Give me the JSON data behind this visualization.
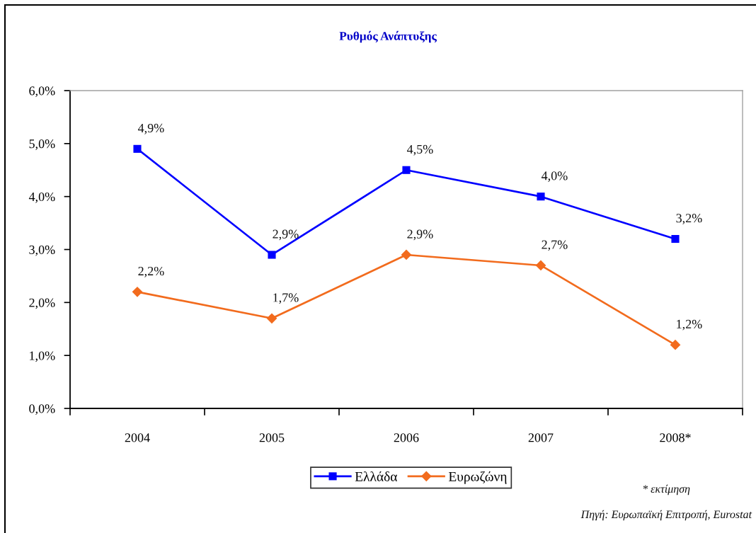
{
  "chart_data": {
    "type": "line",
    "title": "Ρυθμός Ανάπτυξης",
    "categories": [
      "2004",
      "2005",
      "2006",
      "2007",
      "2008*"
    ],
    "series": [
      {
        "name": "Ελλάδα",
        "color": "#0000ff",
        "marker": "square",
        "values": [
          4.9,
          2.9,
          4.5,
          4.0,
          3.2
        ],
        "value_labels": [
          "4,9%",
          "2,9%",
          "4,5%",
          "4,0%",
          "3,2%"
        ]
      },
      {
        "name": "Ευρωζώνη",
        "color": "#f26b1d",
        "marker": "diamond",
        "values": [
          2.2,
          1.7,
          2.9,
          2.7,
          1.2
        ],
        "value_labels": [
          "2,2%",
          "1,7%",
          "2,9%",
          "2,7%",
          "1,2%"
        ]
      }
    ],
    "ylim": [
      0,
      6
    ],
    "yticks": [
      {
        "value": 0,
        "label": "0,0%"
      },
      {
        "value": 1,
        "label": "1,0%"
      },
      {
        "value": 2,
        "label": "2,0%"
      },
      {
        "value": 3,
        "label": "3,0%"
      },
      {
        "value": 4,
        "label": "4,0%"
      },
      {
        "value": 5,
        "label": "5,0%"
      },
      {
        "value": 6,
        "label": "6,0%"
      }
    ],
    "legend": "bottom",
    "line_style": "solid",
    "annotations": [
      "* εκτίμηση",
      "Πηγή: Ευρωπαϊκή Επιτροπή, Eurostat"
    ]
  }
}
